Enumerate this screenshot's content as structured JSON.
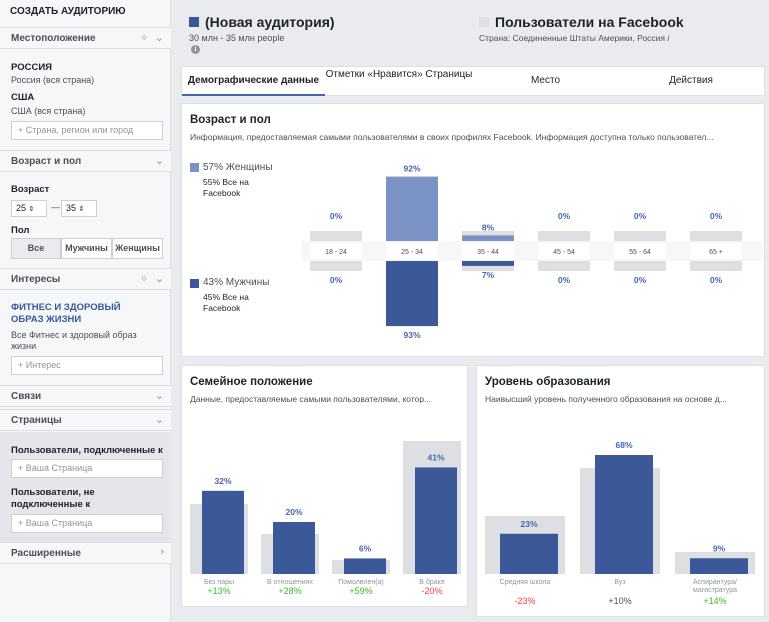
{
  "sidebar": {
    "title": "СОЗДАТЬ АУДИТОРИЮ",
    "location": {
      "label": "Местоположение",
      "country1": "РОССИЯ",
      "country1_sub": "Россия (вся страна)",
      "country2": "США",
      "country2_sub": "США (вся страна)",
      "placeholder": "Страна, регион или город"
    },
    "age_gender": {
      "label": "Возраст и пол",
      "age_label": "Возраст",
      "age_from": "25",
      "age_to": "35",
      "gender_label": "Пол",
      "gender_options": [
        "Все",
        "Мужчины",
        "Женщины"
      ]
    },
    "interests": {
      "label": "Интересы",
      "interest_title": "ФИТНЕС И ЗДОРОВЫЙ ОБРАЗ ЖИЗНИ",
      "interest_sub": "Все Фитнес и здоровый образ жизни",
      "placeholder": "Интерес"
    },
    "connections_label": "Связи",
    "pages": {
      "label": "Страницы",
      "connected_label": "Пользователи, подключенные к",
      "connected_placeholder": "Ваша Страница",
      "not_connected_label": "Пользователи, не подключенные к",
      "not_connected_placeholder": "Ваша Страница"
    },
    "advanced_label": "Расширенные"
  },
  "header": {
    "new_audience": "(Новая аудитория)",
    "new_audience_size": "30 млн - 35 млн people",
    "fb_users": "Пользователи на Facebook",
    "fb_users_sub": "Страна: Соединенные Штаты Америки, Россия",
    "colors": {
      "new": "#365899",
      "fb": "#dddfe2"
    }
  },
  "tabs": [
    "Демографические данные",
    "Отметки «Нравится» Страницы",
    "Место",
    "Действия"
  ],
  "age_gender_card": {
    "title": "Возраст и пол",
    "subtitle": "Информация, предоставляемая самыми пользователями в своих профилях Facebook. Информация доступна только пользовател...",
    "women_label": "57% Женщины",
    "women_sub": "55% Все на Facebook",
    "men_label": "43% Мужчины",
    "men_sub": "45% Все на Facebook"
  },
  "family_card": {
    "title": "Семейное положение",
    "subtitle": "Данные, предоставляемые самыми пользователями, котор..."
  },
  "education_card": {
    "title": "Уровень образования",
    "subtitle": "Наивысший уровень полученного образования на основе д..."
  },
  "chart_data": [
    {
      "type": "bar",
      "title": "Возраст и пол",
      "categories": [
        "18 - 24",
        "25 - 34",
        "35 - 44",
        "45 - 54",
        "55 - 64",
        "65 +"
      ],
      "series": [
        {
          "name": "Женщины",
          "values": [
            0,
            92,
            8,
            0,
            0,
            0
          ],
          "labels": [
            "0%",
            "92%",
            "8%",
            "0%",
            "0%",
            "0%"
          ]
        },
        {
          "name": "Мужчины",
          "values": [
            0,
            93,
            7,
            0,
            0,
            0
          ],
          "labels": [
            "0%",
            "93%",
            "7%",
            "0%",
            "0%",
            "0%"
          ]
        }
      ],
      "colors": {
        "women": "#7b93c4",
        "men": "#3b5998",
        "baseline": "#dddfe2"
      }
    },
    {
      "type": "bar",
      "title": "Семейное положение",
      "categories": [
        "Без пары",
        "В отношениях",
        "Помолвлен(а)",
        "В браке"
      ],
      "values": [
        32,
        20,
        6,
        41
      ],
      "labels": [
        "32%",
        "20%",
        "6%",
        "41%"
      ],
      "deltas": [
        "+13%",
        "+28%",
        "+59%",
        "-20%"
      ],
      "delta_colors": [
        "#42b72a",
        "#42b72a",
        "#42b72a",
        "#fa3e3e"
      ]
    },
    {
      "type": "bar",
      "title": "Уровень образования",
      "categories": [
        "Средняя школа",
        "Вуз",
        "Аспирантура/ магистратура"
      ],
      "values": [
        23,
        68,
        9
      ],
      "labels": [
        "23%",
        "68%",
        "9%"
      ],
      "deltas": [
        "-23%",
        "+10%",
        "+14%"
      ],
      "delta_colors": [
        "#fa3e3e",
        "#4b4f56",
        "#42b72a"
      ]
    }
  ]
}
